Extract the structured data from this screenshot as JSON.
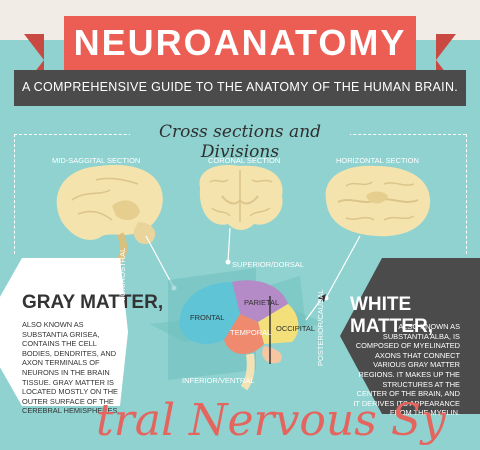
{
  "header": {
    "title": "NEUROANATOMY",
    "subtitle": "A COMPREHENSIVE GUIDE TO THE ANATOMY OF THE HUMAN BRAIN."
  },
  "section": {
    "title": "Cross sections and Divisions"
  },
  "sections": {
    "mid_sagittal": "MID-SAGGITAL SECTION",
    "coronal": "CORONAL SECTION",
    "horizontal": "HORIZONTAL SECTION"
  },
  "diagram_labels": {
    "superior": "SUPERIOR/DORSAL",
    "inferior": "INFERIOR/VENTRAL",
    "anterior": "ANTERIOR/ROSTRAL",
    "posterior": "POSTERIOR/CAUDAL",
    "frontal": "FRONTAL",
    "parietal": "PARIETAL",
    "temporal": "TEMPORAL",
    "occipital": "OCCIPITAL"
  },
  "gray_matter": {
    "title": "GRAY MATTER,",
    "lines": [
      "ALSO KNOWN AS",
      "SUBSTANTIA GRISEA,",
      "CONTAINS THE CELL",
      "BODIES, DENDRITES, AND",
      "AXON TERMINALS OF",
      "NEURONS IN THE BRAIN",
      "TISSUE. GRAY MATTER IS",
      "LOCATED MOSTLY ON THE",
      "OUTER SURFACE OF THE",
      "CEREBRAL HEMISPHERES."
    ]
  },
  "white_matter": {
    "title": "WHITE MATTER,",
    "lines": [
      "ALSO KNOWN AS",
      "SUBSTANTIA ALBA, IS",
      "COMPOSED OF MYELINATED",
      "AXONS THAT CONNECT",
      "VARIOUS GRAY MATTER",
      "REGIONS. IT MAKES UP THE",
      "STRUCTURES AT THE",
      "CENTER OF THE BRAIN, AND",
      "IT DERIVES ITS APPEARANCE",
      "FROM THE MYELIN."
    ]
  },
  "footer_script": "tral Nervous Sy",
  "colors": {
    "background": "#8fd2d0",
    "ribbon": "#ec5e54",
    "band": "#4b4b4b",
    "brain": "#f4e3ad",
    "frontal": "#5ec4d6",
    "parietal": "#b58bc7",
    "temporal": "#f08a6f",
    "occipital": "#f4e07a"
  }
}
